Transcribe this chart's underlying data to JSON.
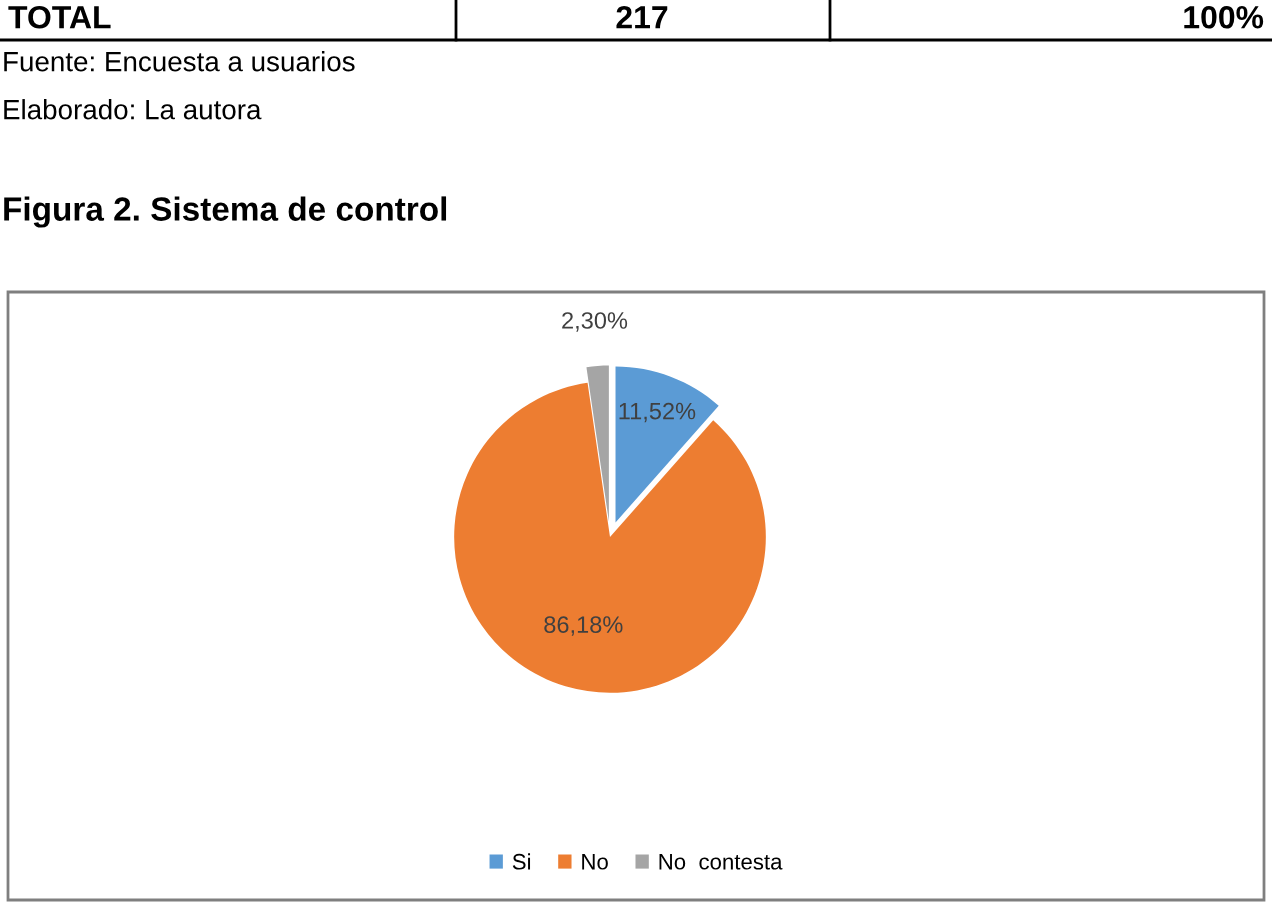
{
  "chart_data": {
    "type": "pie",
    "title": "Figura 2. Sistema de control",
    "annotations": [
      "TOTAL",
      "217",
      "100%",
      "Fuente: Encuesta a usuarios",
      "Elaborado: La autora"
    ],
    "categories": [
      "Si",
      "No",
      "No  contesta"
    ],
    "values": [
      11.52,
      86.18,
      2.3
    ],
    "value_labels": [
      "11,52%",
      "86,18%",
      "2,30%"
    ],
    "colors": [
      "#5b9bd5",
      "#ed7d31",
      "#a5a5a5"
    ],
    "legend": "bottom"
  }
}
